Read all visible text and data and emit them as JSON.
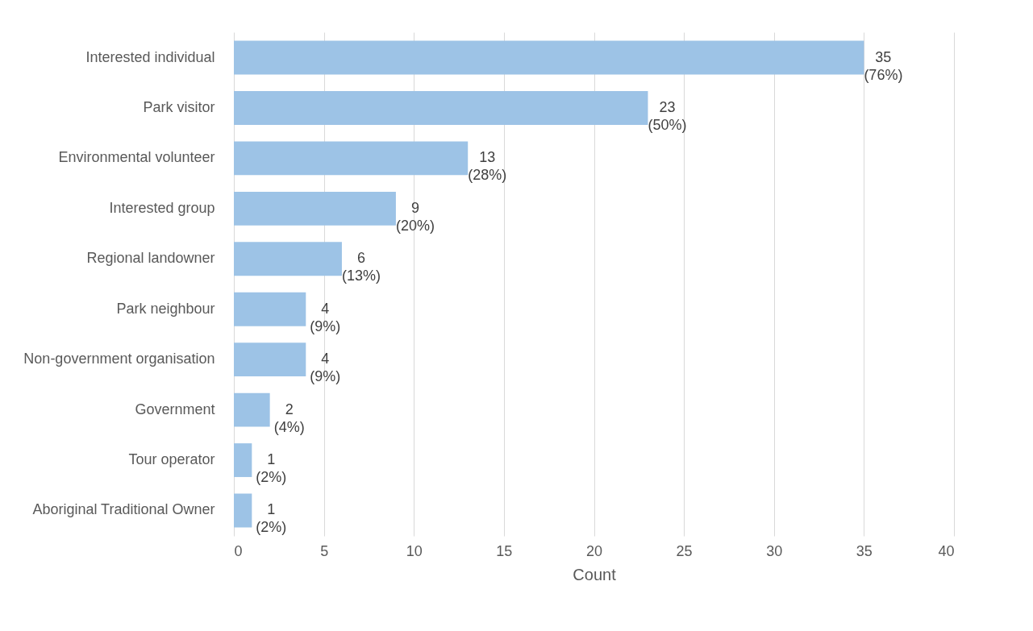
{
  "chart_data": {
    "type": "bar",
    "orientation": "horizontal",
    "xlabel": "Count",
    "categories": [
      "Interested individual",
      "Park visitor",
      "Environmental volunteer",
      "Interested group",
      "Regional landowner",
      "Park neighbour",
      "Non-government organisation",
      "Government",
      "Tour operator",
      "Aboriginal Traditional Owner"
    ],
    "values": [
      35,
      23,
      13,
      9,
      6,
      4,
      4,
      2,
      1,
      1
    ],
    "value_labels": [
      "35\n(76%)",
      "23\n(50%)",
      "13\n(28%)",
      "9\n(20%)",
      "6\n(13%)",
      "4\n(9%)",
      "4\n(9%)",
      "2\n(4%)",
      "1\n(2%)",
      "1\n(2%)"
    ],
    "color": "#9dc3e6",
    "xlim": [
      0,
      40
    ],
    "xticks": [
      0,
      5,
      10,
      15,
      20,
      25,
      30,
      35,
      40
    ],
    "grid": "x"
  }
}
